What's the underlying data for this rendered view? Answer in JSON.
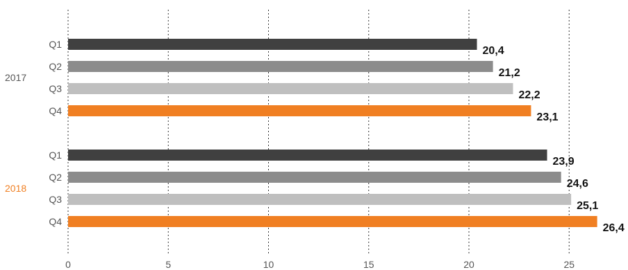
{
  "chart_data": {
    "type": "bar",
    "orientation": "horizontal",
    "title": "",
    "xlabel": "",
    "ylabel": "",
    "xlim": [
      0,
      27
    ],
    "x_ticks": [
      0,
      5,
      10,
      15,
      20,
      25
    ],
    "grid": true,
    "legend": "none",
    "decimal_separator": ",",
    "colors": {
      "Q1": "#404040",
      "Q2": "#8c8c8c",
      "Q3": "#bfbfbf",
      "Q4": "#f07f22"
    },
    "groups": [
      {
        "label": "2017",
        "label_color": "#555555",
        "bars": [
          {
            "category": "Q1",
            "value": 20.4
          },
          {
            "category": "Q2",
            "value": 21.2
          },
          {
            "category": "Q3",
            "value": 22.2
          },
          {
            "category": "Q4",
            "value": 23.1
          }
        ]
      },
      {
        "label": "2018",
        "label_color": "#f07f22",
        "bars": [
          {
            "category": "Q1",
            "value": 23.9
          },
          {
            "category": "Q2",
            "value": 24.6
          },
          {
            "category": "Q3",
            "value": 25.1
          },
          {
            "category": "Q4",
            "value": 26.4
          }
        ]
      }
    ]
  }
}
